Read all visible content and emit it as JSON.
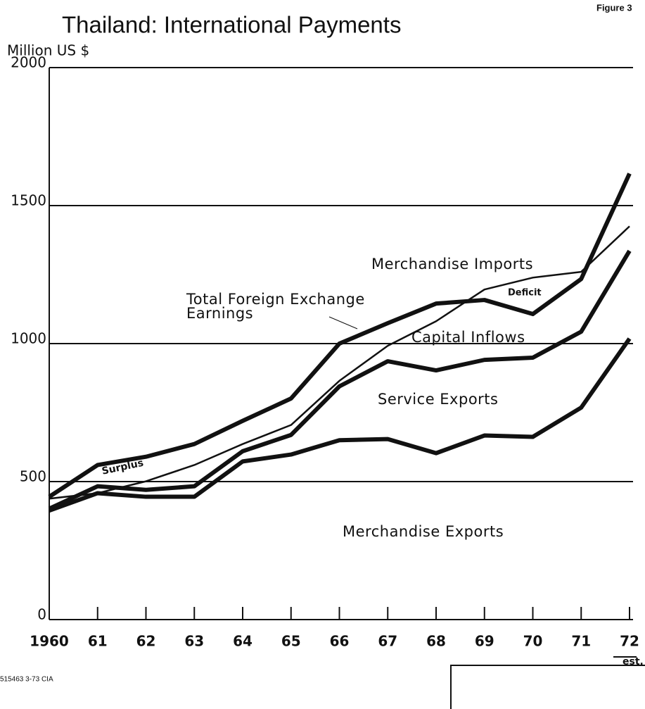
{
  "chart_data": {
    "type": "line",
    "stacked": true,
    "title": "Thailand: International Payments",
    "figure_label": "Figure 3",
    "y_label": "Million US $",
    "footer": "515463 3-73 CIA",
    "categories": [
      "1960",
      "61",
      "62",
      "63",
      "64",
      "65",
      "66",
      "67",
      "68",
      "69",
      "70",
      "71",
      "72"
    ],
    "x_note": "est.",
    "ylim": [
      0,
      2000
    ],
    "yticks": [
      0,
      500,
      1000,
      1500,
      2000
    ],
    "grid": true,
    "series": [
      {
        "name": "Merchandise Exports",
        "color": "#111",
        "values": [
          395,
          458,
          445,
          445,
          573,
          598,
          650,
          654,
          603,
          667,
          662,
          768,
          1018
        ]
      },
      {
        "name": "Service Exports",
        "color": "#111",
        "values": [
          7,
          25,
          25,
          38,
          37,
          71,
          195,
          282,
          300,
          274,
          287,
          275,
          318
        ]
      },
      {
        "name": "Capital Inflows",
        "color": "#111",
        "values": [
          43,
          77,
          120,
          153,
          110,
          132,
          155,
          138,
          242,
          217,
          158,
          191,
          280
        ]
      },
      {
        "name": "Merchandise Imports",
        "color": "#111",
        "stack": false,
        "values": [
          438,
          458,
          501,
          560,
          636,
          705,
          865,
          992,
          1081,
          1196,
          1239,
          1260,
          1425
        ]
      }
    ],
    "total_name": "Total Foreign Exchange Earnings",
    "annotations": [
      "Surplus",
      "Deficit"
    ]
  }
}
